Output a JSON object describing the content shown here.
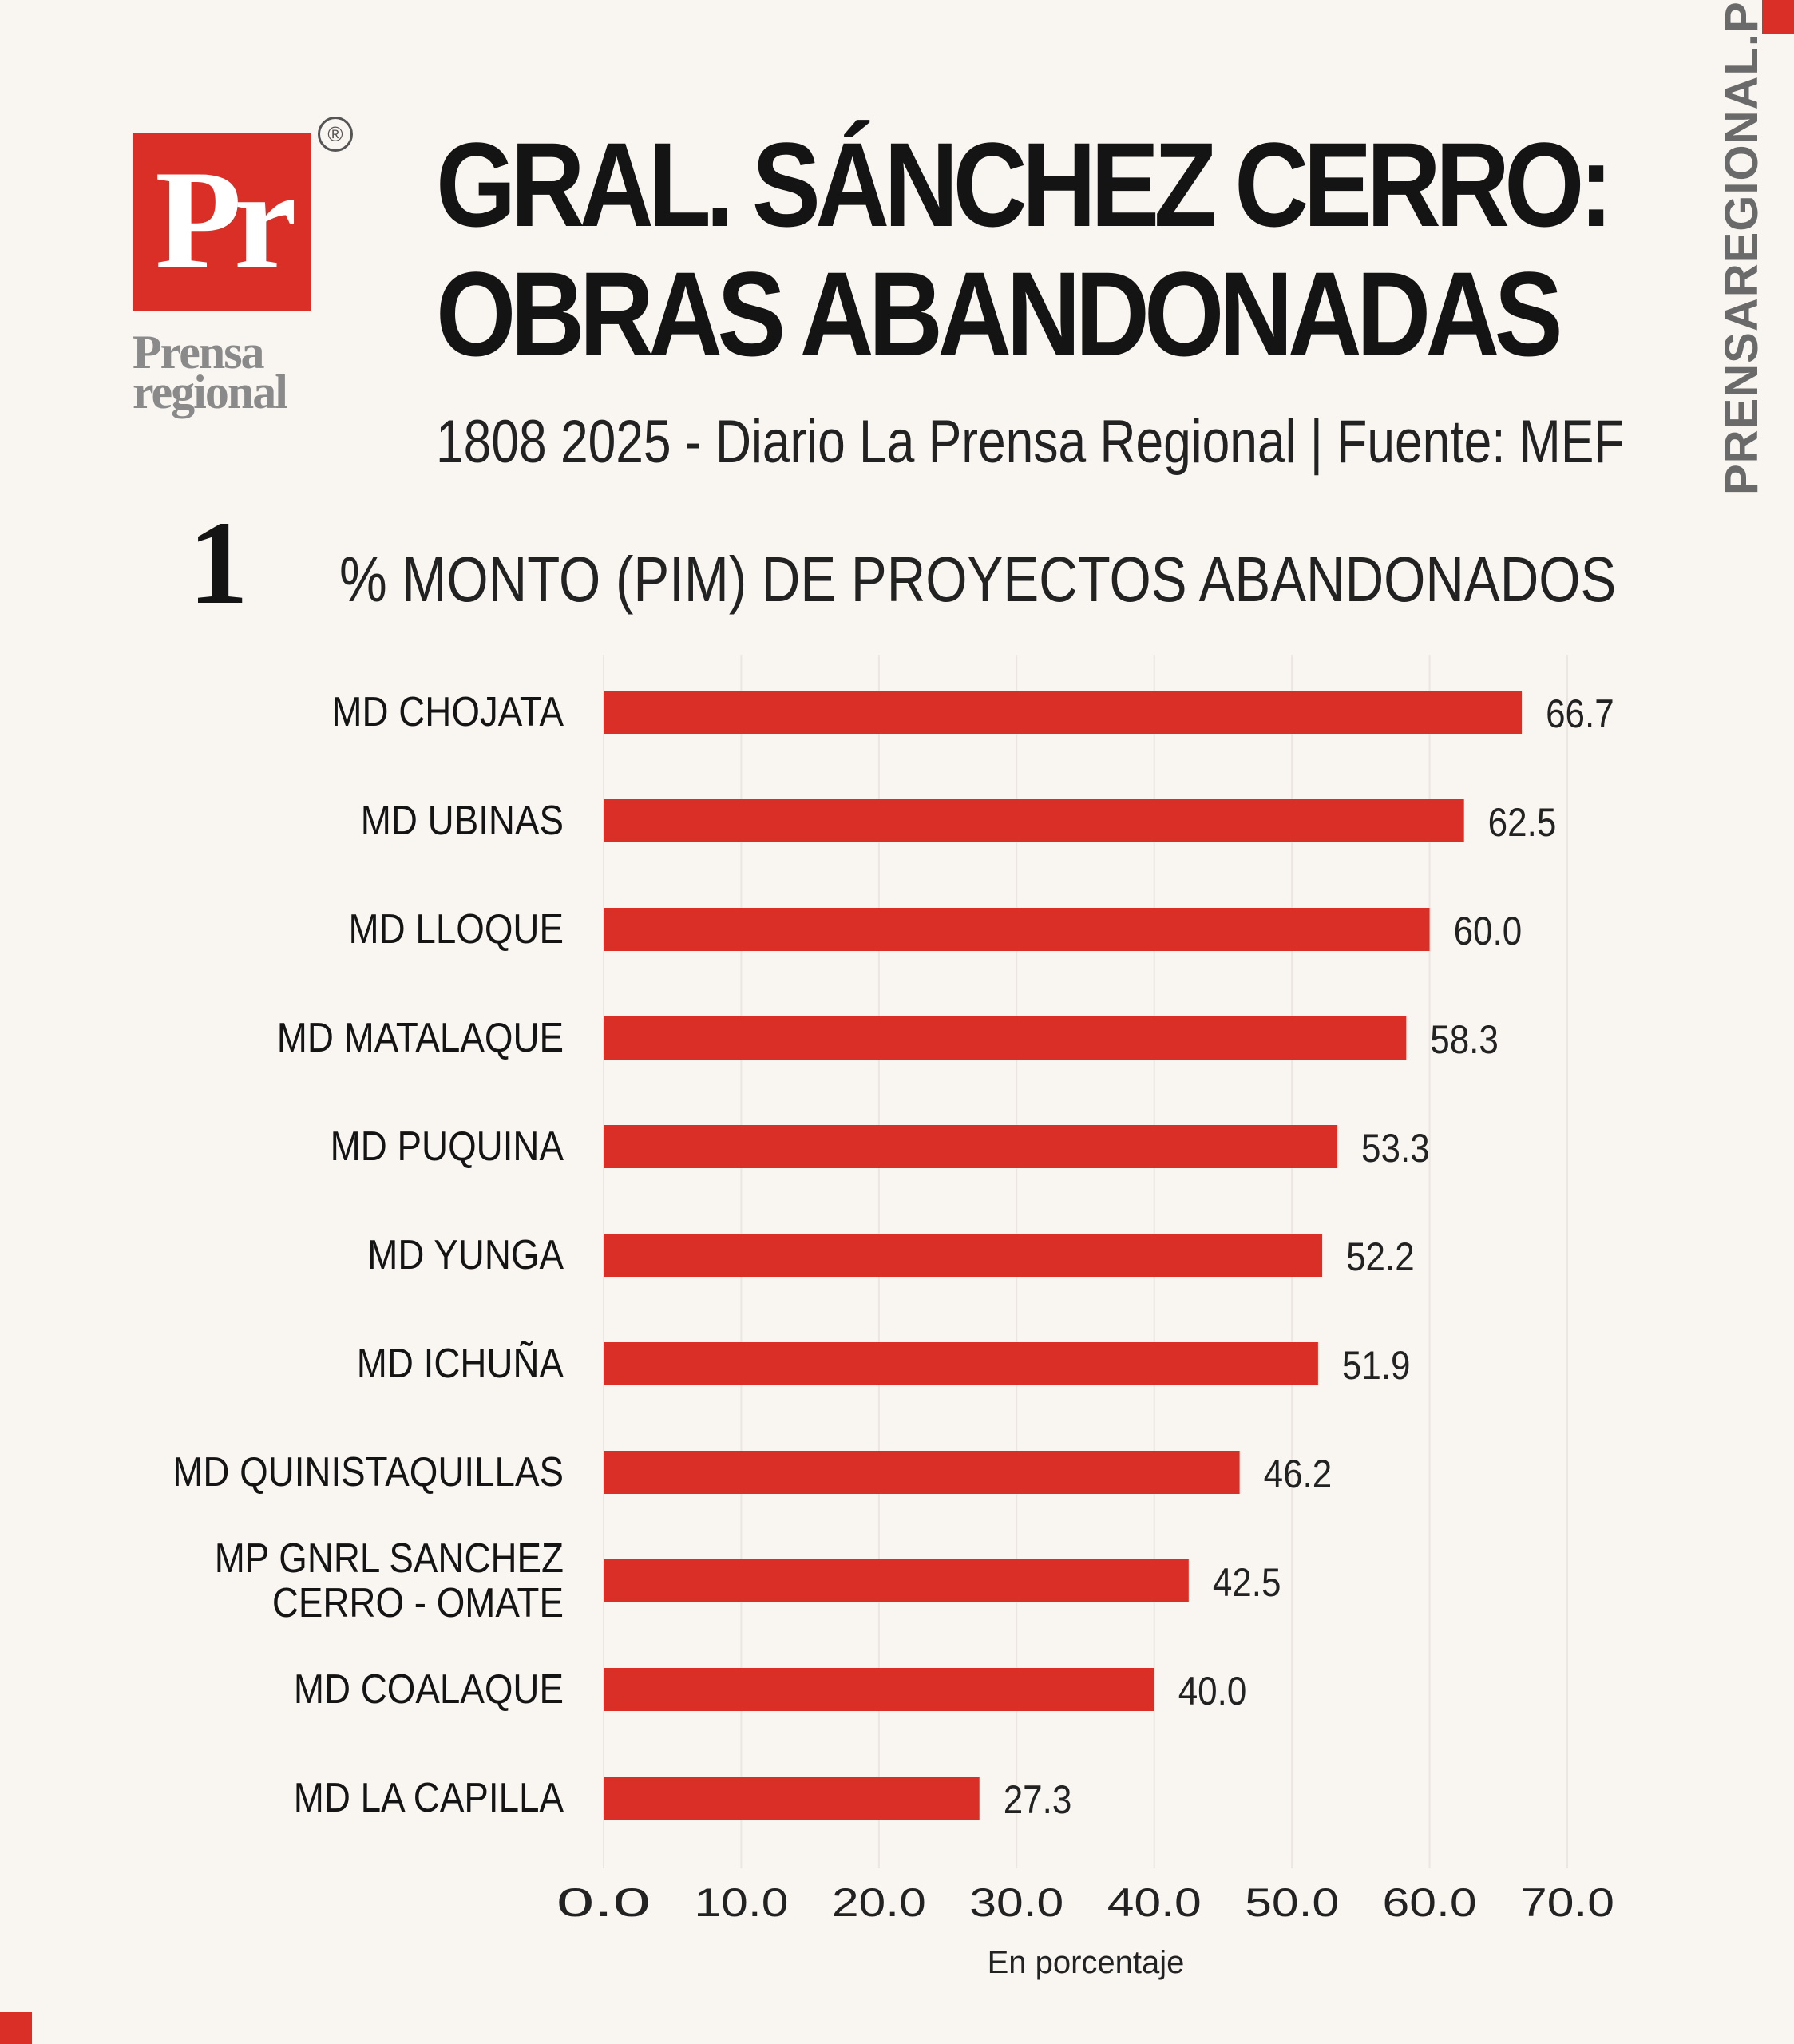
{
  "logo": {
    "mark": "Pr",
    "name_line1": "Prensa",
    "name_line2": "regional",
    "registered": "®"
  },
  "header": {
    "title_line1": "GRAL. SÁNCHEZ CERRO:",
    "title_line2": "OBRAS ABANDONADAS",
    "subtitle": "1808 2025 - Diario La Prensa Regional | Fuente: MEF",
    "side_url": "PRENSAREGIONAL.PE"
  },
  "section": {
    "number": "1",
    "title": "% MONTO (PIM) DE PROYECTOS ABANDONADOS"
  },
  "colors": {
    "accent": "#d92f27",
    "text": "#141414",
    "background": "#f9f5f1",
    "grid": "#ebe6e1"
  },
  "chart_data": {
    "type": "bar",
    "orientation": "horizontal",
    "categories": [
      "MD CHOJATA",
      "MD UBINAS",
      "MD LLOQUE",
      "MD MATALAQUE",
      "MD PUQUINA",
      "MD YUNGA",
      "MD ICHUÑA",
      "MD QUINISTAQUILLAS",
      "MP GNRL SANCHEZ CERRO - OMATE",
      "MD  COALAQUE",
      "MD LA CAPILLA"
    ],
    "category_lines": [
      [
        "MD CHOJATA"
      ],
      [
        "MD UBINAS"
      ],
      [
        "MD LLOQUE"
      ],
      [
        "MD MATALAQUE"
      ],
      [
        "MD PUQUINA"
      ],
      [
        "MD YUNGA"
      ],
      [
        "MD ICHUÑA"
      ],
      [
        "MD QUINISTAQUILLAS"
      ],
      [
        "MP GNRL SANCHEZ",
        "CERRO - OMATE"
      ],
      [
        "MD  COALAQUE"
      ],
      [
        "MD LA CAPILLA"
      ]
    ],
    "values": [
      66.7,
      62.5,
      60.0,
      58.3,
      53.3,
      52.2,
      51.9,
      46.2,
      42.5,
      40.0,
      27.3
    ],
    "value_labels": [
      "66.7",
      "62.5",
      "60.0",
      "58.3",
      "53.3",
      "52.2",
      "51.9",
      "46.2",
      "42.5",
      "40.0",
      "27.3"
    ],
    "xticks": [
      "0.0",
      "10.0",
      "20.0",
      "30.0",
      "40.0",
      "50.0",
      "60.0",
      "70.0"
    ],
    "xlim": [
      0,
      70
    ],
    "xlabel": "En porcentaje",
    "grid": true
  }
}
